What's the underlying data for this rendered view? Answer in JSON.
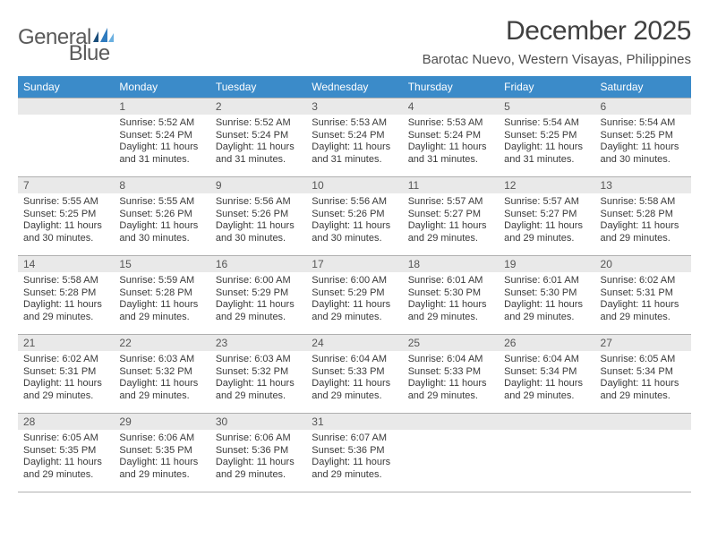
{
  "brand": {
    "left": "General",
    "right": "Blue"
  },
  "title": "December 2025",
  "location": "Barotac Nuevo, Western Visayas, Philippines",
  "colors": {
    "header_bg": "#3b8bc9",
    "header_fg": "#ffffff",
    "daynum_bg": "#e9e9e9",
    "border": "#b0b0b0",
    "logo_dark": "#1a4d7a",
    "logo_mid": "#2f7bbf",
    "logo_light": "#6bb0e0"
  },
  "weekdays": [
    "Sunday",
    "Monday",
    "Tuesday",
    "Wednesday",
    "Thursday",
    "Friday",
    "Saturday"
  ],
  "first_weekday_index": 1,
  "days": [
    {
      "n": 1,
      "sunrise": "5:52 AM",
      "sunset": "5:24 PM",
      "daylight": "11 hours and 31 minutes."
    },
    {
      "n": 2,
      "sunrise": "5:52 AM",
      "sunset": "5:24 PM",
      "daylight": "11 hours and 31 minutes."
    },
    {
      "n": 3,
      "sunrise": "5:53 AM",
      "sunset": "5:24 PM",
      "daylight": "11 hours and 31 minutes."
    },
    {
      "n": 4,
      "sunrise": "5:53 AM",
      "sunset": "5:24 PM",
      "daylight": "11 hours and 31 minutes."
    },
    {
      "n": 5,
      "sunrise": "5:54 AM",
      "sunset": "5:25 PM",
      "daylight": "11 hours and 31 minutes."
    },
    {
      "n": 6,
      "sunrise": "5:54 AM",
      "sunset": "5:25 PM",
      "daylight": "11 hours and 30 minutes."
    },
    {
      "n": 7,
      "sunrise": "5:55 AM",
      "sunset": "5:25 PM",
      "daylight": "11 hours and 30 minutes."
    },
    {
      "n": 8,
      "sunrise": "5:55 AM",
      "sunset": "5:26 PM",
      "daylight": "11 hours and 30 minutes."
    },
    {
      "n": 9,
      "sunrise": "5:56 AM",
      "sunset": "5:26 PM",
      "daylight": "11 hours and 30 minutes."
    },
    {
      "n": 10,
      "sunrise": "5:56 AM",
      "sunset": "5:26 PM",
      "daylight": "11 hours and 30 minutes."
    },
    {
      "n": 11,
      "sunrise": "5:57 AM",
      "sunset": "5:27 PM",
      "daylight": "11 hours and 29 minutes."
    },
    {
      "n": 12,
      "sunrise": "5:57 AM",
      "sunset": "5:27 PM",
      "daylight": "11 hours and 29 minutes."
    },
    {
      "n": 13,
      "sunrise": "5:58 AM",
      "sunset": "5:28 PM",
      "daylight": "11 hours and 29 minutes."
    },
    {
      "n": 14,
      "sunrise": "5:58 AM",
      "sunset": "5:28 PM",
      "daylight": "11 hours and 29 minutes."
    },
    {
      "n": 15,
      "sunrise": "5:59 AM",
      "sunset": "5:28 PM",
      "daylight": "11 hours and 29 minutes."
    },
    {
      "n": 16,
      "sunrise": "6:00 AM",
      "sunset": "5:29 PM",
      "daylight": "11 hours and 29 minutes."
    },
    {
      "n": 17,
      "sunrise": "6:00 AM",
      "sunset": "5:29 PM",
      "daylight": "11 hours and 29 minutes."
    },
    {
      "n": 18,
      "sunrise": "6:01 AM",
      "sunset": "5:30 PM",
      "daylight": "11 hours and 29 minutes."
    },
    {
      "n": 19,
      "sunrise": "6:01 AM",
      "sunset": "5:30 PM",
      "daylight": "11 hours and 29 minutes."
    },
    {
      "n": 20,
      "sunrise": "6:02 AM",
      "sunset": "5:31 PM",
      "daylight": "11 hours and 29 minutes."
    },
    {
      "n": 21,
      "sunrise": "6:02 AM",
      "sunset": "5:31 PM",
      "daylight": "11 hours and 29 minutes."
    },
    {
      "n": 22,
      "sunrise": "6:03 AM",
      "sunset": "5:32 PM",
      "daylight": "11 hours and 29 minutes."
    },
    {
      "n": 23,
      "sunrise": "6:03 AM",
      "sunset": "5:32 PM",
      "daylight": "11 hours and 29 minutes."
    },
    {
      "n": 24,
      "sunrise": "6:04 AM",
      "sunset": "5:33 PM",
      "daylight": "11 hours and 29 minutes."
    },
    {
      "n": 25,
      "sunrise": "6:04 AM",
      "sunset": "5:33 PM",
      "daylight": "11 hours and 29 minutes."
    },
    {
      "n": 26,
      "sunrise": "6:04 AM",
      "sunset": "5:34 PM",
      "daylight": "11 hours and 29 minutes."
    },
    {
      "n": 27,
      "sunrise": "6:05 AM",
      "sunset": "5:34 PM",
      "daylight": "11 hours and 29 minutes."
    },
    {
      "n": 28,
      "sunrise": "6:05 AM",
      "sunset": "5:35 PM",
      "daylight": "11 hours and 29 minutes."
    },
    {
      "n": 29,
      "sunrise": "6:06 AM",
      "sunset": "5:35 PM",
      "daylight": "11 hours and 29 minutes."
    },
    {
      "n": 30,
      "sunrise": "6:06 AM",
      "sunset": "5:36 PM",
      "daylight": "11 hours and 29 minutes."
    },
    {
      "n": 31,
      "sunrise": "6:07 AM",
      "sunset": "5:36 PM",
      "daylight": "11 hours and 29 minutes."
    }
  ],
  "labels": {
    "sunrise": "Sunrise:",
    "sunset": "Sunset:",
    "daylight": "Daylight:"
  }
}
